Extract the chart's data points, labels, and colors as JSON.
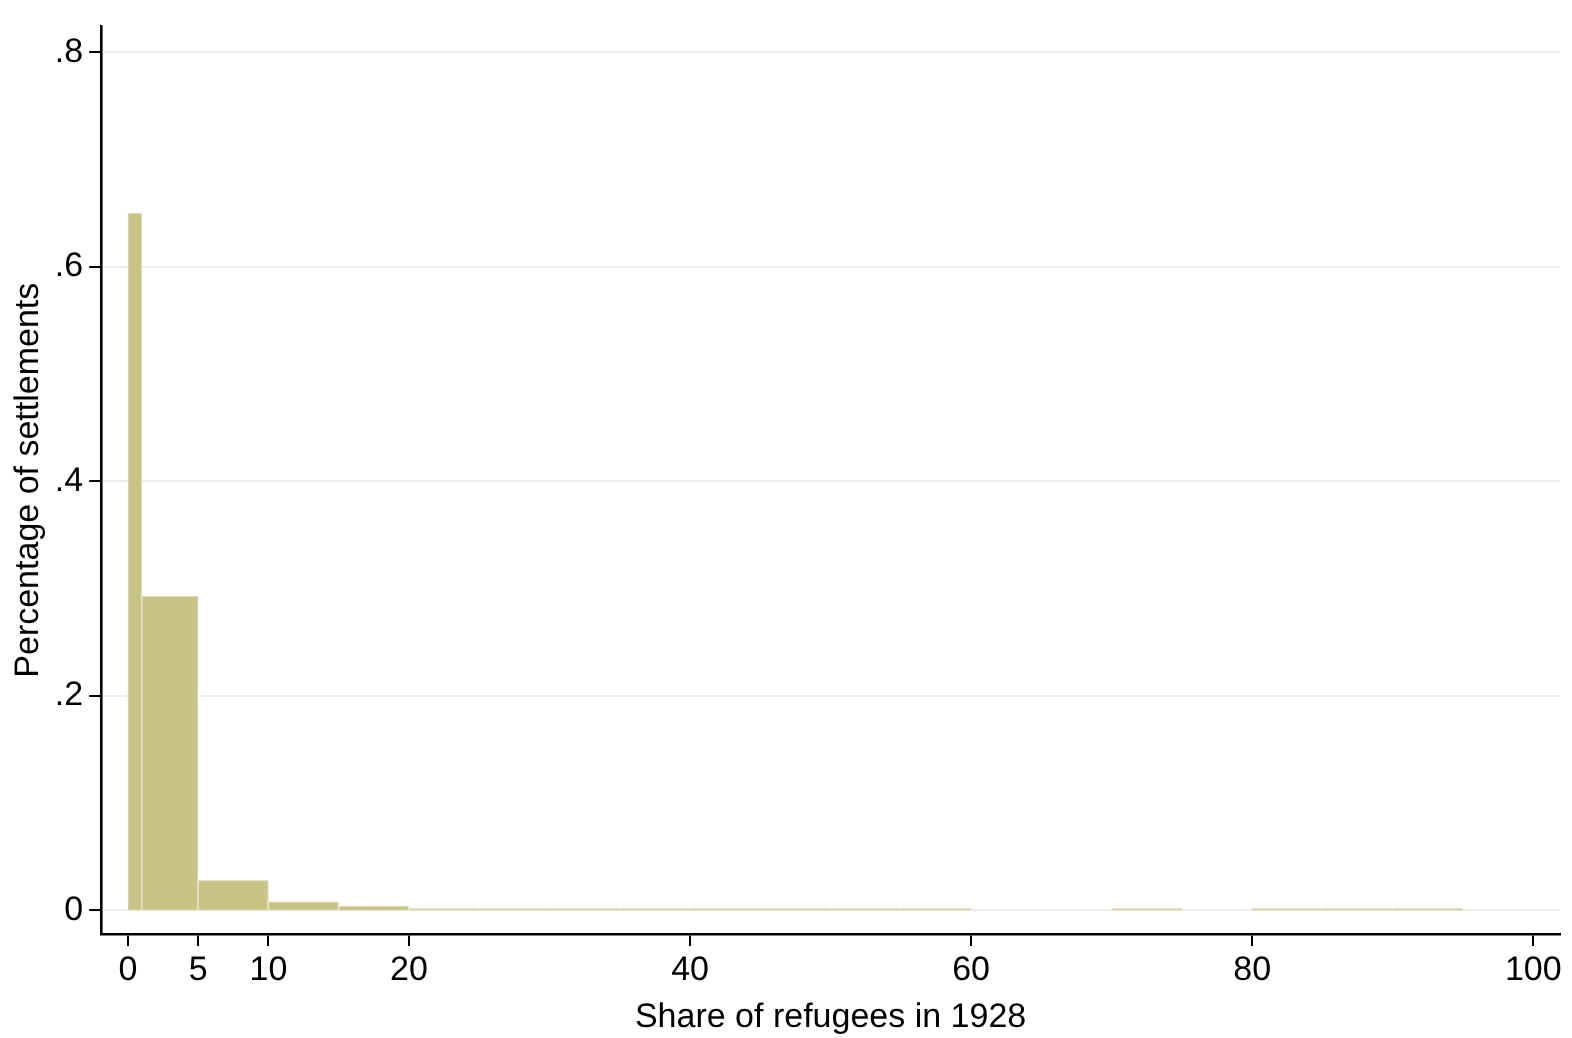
{
  "chart_data": {
    "type": "histogram",
    "xlabel": "Share of refugees in 1928",
    "ylabel": "Percentage of settlements",
    "bins": [
      0,
      1,
      5,
      10,
      15,
      20,
      25,
      30,
      35,
      40,
      45,
      50,
      55,
      60,
      70,
      75,
      80,
      85,
      90,
      95
    ],
    "values": [
      0.65,
      0.293,
      0.028,
      0.008,
      0.004,
      0.002,
      0.002,
      0.002,
      0.002,
      0.002,
      0.002,
      0.002,
      0.002,
      0,
      0.002,
      0,
      0.002,
      0.002,
      0.002
    ],
    "color": "#c9c386",
    "xlim": [
      -1.9,
      101.9
    ],
    "xticks": [
      0,
      5,
      10,
      20,
      40,
      60,
      80,
      100
    ],
    "ylim": [
      -0.022,
      0.824
    ],
    "yticks": [
      {
        "value": 0,
        "label": "0"
      },
      {
        "value": 0.2,
        "label": ".2"
      },
      {
        "value": 0.4,
        "label": ".4"
      },
      {
        "value": 0.6,
        "label": ".6"
      },
      {
        "value": 0.8,
        "label": ".8"
      }
    ],
    "grid": "y"
  }
}
